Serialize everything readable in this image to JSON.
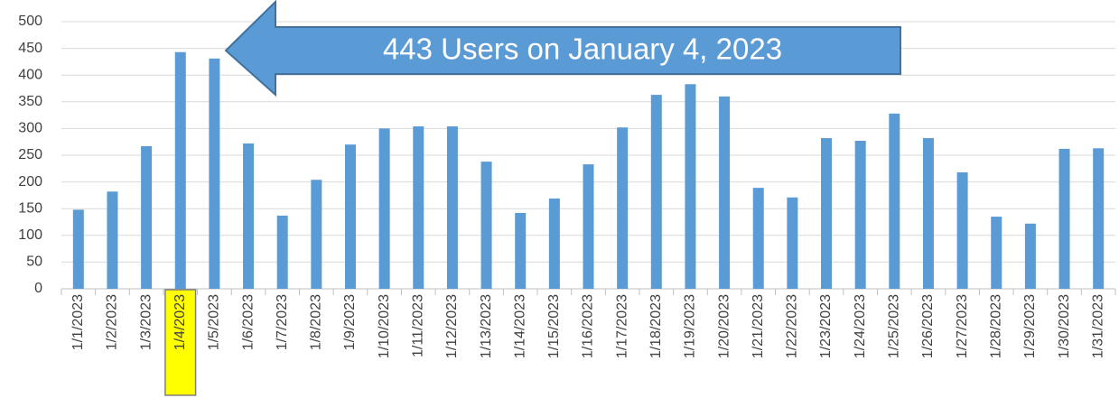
{
  "chart_data": {
    "type": "bar",
    "annotation": "443 Users on January 4, 2023",
    "categories": [
      "1/1/2023",
      "1/2/2023",
      "1/3/2023",
      "1/4/2023",
      "1/5/2023",
      "1/6/2023",
      "1/7/2023",
      "1/8/2023",
      "1/9/2023",
      "1/10/2023",
      "1/11/2023",
      "1/12/2023",
      "1/13/2023",
      "1/14/2023",
      "1/15/2023",
      "1/16/2023",
      "1/17/2023",
      "1/18/2023",
      "1/19/2023",
      "1/20/2023",
      "1/21/2023",
      "1/22/2023",
      "1/23/2023",
      "1/24/2023",
      "1/25/2023",
      "1/26/2023",
      "1/27/2023",
      "1/28/2023",
      "1/29/2023",
      "1/30/2023",
      "1/31/2023"
    ],
    "values": [
      148,
      182,
      267,
      443,
      431,
      272,
      137,
      204,
      270,
      300,
      304,
      304,
      238,
      142,
      169,
      233,
      302,
      363,
      383,
      360,
      189,
      171,
      282,
      277,
      328,
      282,
      218,
      135,
      122,
      262,
      263
    ],
    "color": "#5b9bd5",
    "ylim": [
      0,
      500
    ],
    "yticks": [
      0,
      50,
      100,
      150,
      200,
      250,
      300,
      350,
      400,
      450,
      500
    ],
    "grid": true,
    "highlight": {
      "index": 3,
      "color": "#ffff00"
    }
  }
}
